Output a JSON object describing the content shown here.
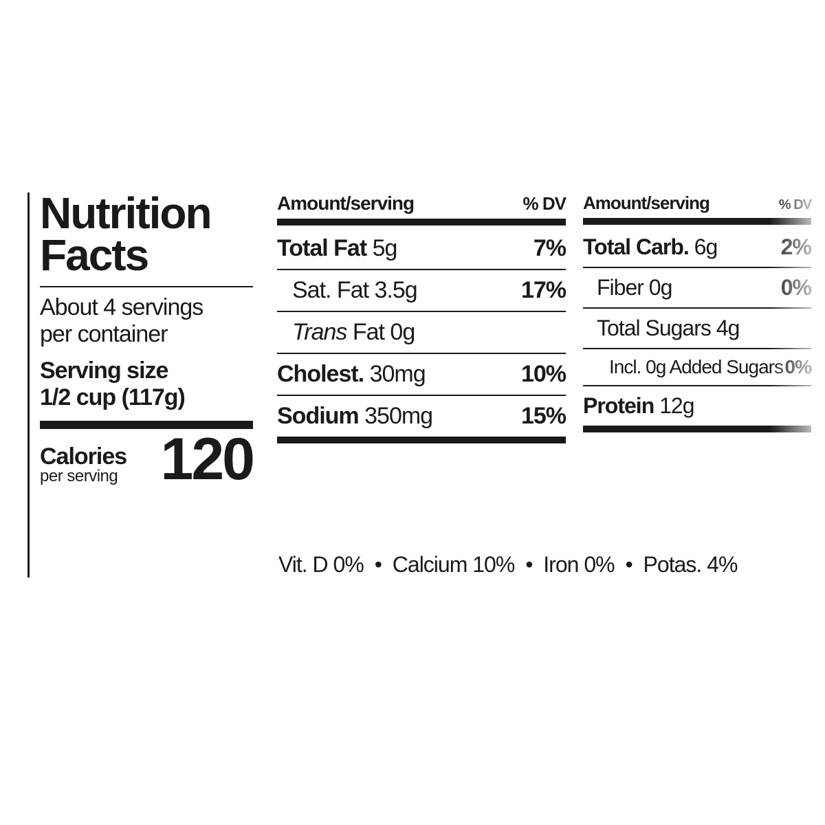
{
  "title": {
    "line1": "Nutrition",
    "line2": "Facts"
  },
  "servings": {
    "line1": "About 4 servings",
    "line2": "per container"
  },
  "serving_size": {
    "line1": "Serving size",
    "line2": "1/2 cup (117g)"
  },
  "calories": {
    "label": "Calories",
    "sub": "per serving",
    "value": "120"
  },
  "headers": {
    "amount": "Amount/serving",
    "dv": "% DV"
  },
  "col1": {
    "total_fat": {
      "label": "Total Fat",
      "value": "5g",
      "dv": "7%"
    },
    "sat_fat": {
      "label": "Sat. Fat",
      "value": "3.5g",
      "dv": "17%"
    },
    "trans_fat": {
      "label_prefix": "Trans",
      "label_suffix": " Fat",
      "value": "0g",
      "dv": ""
    },
    "cholest": {
      "label": "Cholest.",
      "value": "30mg",
      "dv": "10%"
    },
    "sodium": {
      "label": "Sodium",
      "value": "350mg",
      "dv": "15%"
    }
  },
  "col2": {
    "total_carb": {
      "label": "Total Carb.",
      "value": "6g",
      "dv": "2%"
    },
    "fiber": {
      "label": "Fiber",
      "value": "0g",
      "dv": "0%"
    },
    "sugars": {
      "label": "Total Sugars",
      "value": "4g",
      "dv": ""
    },
    "added_sugars": {
      "label": "Incl. 0g Added Sugars",
      "dv": "0%"
    },
    "protein": {
      "label": "Protein",
      "value": "12g",
      "dv": ""
    }
  },
  "vitamins": {
    "vitd": {
      "label": "Vit. D",
      "value": "0%"
    },
    "calcium": {
      "label": "Calcium",
      "value": "10%"
    },
    "iron": {
      "label": "Iron",
      "value": "0%"
    },
    "potas": {
      "label": "Potas.",
      "value": "4%"
    }
  },
  "colors": {
    "text": "#1a1a1a",
    "bg": "#ffffff"
  }
}
